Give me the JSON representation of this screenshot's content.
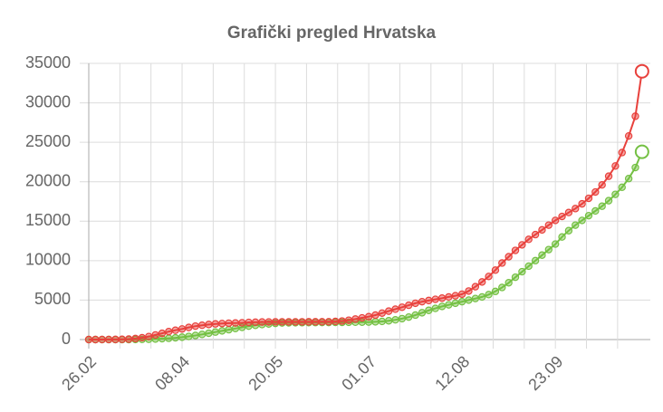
{
  "chart_data": {
    "type": "line",
    "title": "Grafički pregled Hrvatska",
    "categories": [
      "26.02",
      null,
      null,
      null,
      null,
      null,
      null,
      null,
      null,
      null,
      null,
      null,
      null,
      null,
      "08.04",
      null,
      null,
      null,
      null,
      null,
      null,
      null,
      null,
      null,
      null,
      null,
      null,
      null,
      "20.05",
      null,
      null,
      null,
      null,
      null,
      null,
      null,
      null,
      null,
      null,
      null,
      null,
      null,
      "01.07",
      null,
      null,
      null,
      null,
      null,
      null,
      null,
      null,
      null,
      null,
      null,
      null,
      null,
      "12.08",
      null,
      null,
      null,
      null,
      null,
      null,
      null,
      null,
      null,
      null,
      null,
      null,
      null,
      "23.09",
      null,
      null,
      null,
      null,
      null,
      null,
      null,
      null,
      null,
      null,
      null,
      null,
      null
    ],
    "series": [
      {
        "color": "#74c043",
        "values": [
          0,
          0,
          0,
          0,
          0,
          0,
          0,
          5,
          20,
          40,
          70,
          110,
          160,
          220,
          300,
          400,
          520,
          650,
          800,
          950,
          1100,
          1250,
          1400,
          1550,
          1700,
          1800,
          1900,
          1980,
          2050,
          2100,
          2120,
          2130,
          2140,
          2150,
          2155,
          2160,
          2165,
          2170,
          2180,
          2190,
          2200,
          2210,
          2220,
          2250,
          2300,
          2380,
          2500,
          2650,
          2850,
          3100,
          3400,
          3700,
          3950,
          4200,
          4400,
          4600,
          4800,
          5000,
          5200,
          5400,
          5700,
          6100,
          6600,
          7200,
          7900,
          8600,
          9300,
          10000,
          10700,
          11400,
          12100,
          13000,
          13800,
          14500,
          15100,
          15700,
          16300,
          16900,
          17600,
          18400,
          19300,
          20400,
          21800,
          23800
        ]
      },
      {
        "color": "#e8413c",
        "values": [
          0,
          0,
          5,
          10,
          14,
          32,
          56,
          128,
          235,
          382,
          586,
          790,
          1011,
          1182,
          1343,
          1534,
          1704,
          1814,
          1908,
          1981,
          2030,
          2076,
          2101,
          2125,
          2175,
          2200,
          2222,
          2232,
          2240,
          2245,
          2246,
          2247,
          2250,
          2252,
          2255,
          2258,
          2260,
          2300,
          2350,
          2450,
          2600,
          2750,
          2900,
          3100,
          3350,
          3600,
          3850,
          4100,
          4350,
          4600,
          4800,
          4950,
          5100,
          5250,
          5400,
          5550,
          5750,
          6150,
          6700,
          7300,
          8000,
          8800,
          9700,
          10500,
          11300,
          12000,
          12700,
          13300,
          13900,
          14500,
          15100,
          15600,
          16100,
          16600,
          17200,
          17900,
          18700,
          19600,
          20700,
          22000,
          23700,
          25800,
          28300,
          34000
        ]
      }
    ],
    "ylim": [
      0,
      35000
    ],
    "yticks": [
      0,
      5000,
      10000,
      15000,
      20000,
      25000,
      30000,
      35000
    ],
    "grid": true
  }
}
